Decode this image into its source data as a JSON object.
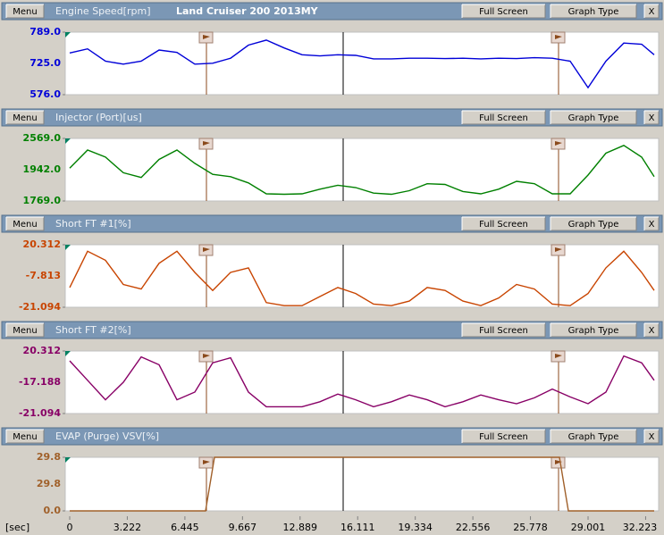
{
  "window": {
    "title": "Land Cruiser 200 2013MY"
  },
  "buttons": {
    "menu": "Menu",
    "full_screen": "Full Screen",
    "graph_type": "Graph Type",
    "close": "X"
  },
  "cursors": [
    {
      "x": 7.65,
      "color": "#8b4a1c"
    },
    {
      "x": 15.3,
      "color": "#000000"
    },
    {
      "x": 27.35,
      "color": "#8b4a1c"
    }
  ],
  "x_axis": {
    "label": "[sec]",
    "xlim": [
      -0.25,
      32.95
    ],
    "xticks": [
      0,
      3.222,
      6.445,
      9.667,
      12.889,
      16.111,
      19.334,
      22.556,
      25.778,
      29.001,
      32.223
    ]
  },
  "chart_data": [
    {
      "type": "line",
      "title": "Engine Speed[rpm]",
      "color": "#0000d8",
      "ylim": [
        576,
        789
      ],
      "yticks": [
        {
          "value": 576,
          "label": "576.0"
        },
        {
          "value": 789,
          "label": "789.0"
        }
      ],
      "cursor_value": "725.0",
      "x": [
        0,
        1,
        2,
        3,
        4,
        5,
        6,
        7,
        8,
        9,
        10,
        11,
        12,
        13,
        14,
        15,
        16,
        17,
        18,
        19,
        20,
        21,
        22,
        23,
        24,
        25,
        26,
        27,
        28,
        29,
        30,
        31,
        32,
        32.7
      ],
      "values": [
        718,
        732,
        690,
        680,
        690,
        728,
        720,
        680,
        683,
        700,
        745,
        762,
        735,
        712,
        708,
        712,
        710,
        698,
        698,
        700,
        700,
        699,
        700,
        698,
        700,
        699,
        702,
        700,
        690,
        600,
        690,
        752,
        748,
        712
      ]
    },
    {
      "type": "line",
      "title": "Injector (Port)[us]",
      "color": "#008000",
      "ylim": [
        1769,
        2569
      ],
      "yticks": [
        {
          "value": 1769,
          "label": "1769.0"
        },
        {
          "value": 2569,
          "label": "2569.0"
        }
      ],
      "cursor_value": "1942.0",
      "x": [
        0,
        1,
        2,
        3,
        4,
        5,
        6,
        7,
        8,
        9,
        10,
        11,
        12,
        13,
        14,
        15,
        16,
        17,
        18,
        19,
        20,
        21,
        22,
        23,
        24,
        25,
        26,
        27,
        28,
        29,
        30,
        31,
        32,
        32.7
      ],
      "values": [
        2190,
        2420,
        2330,
        2130,
        2070,
        2300,
        2420,
        2250,
        2110,
        2080,
        2000,
        1860,
        1855,
        1860,
        1920,
        1970,
        1940,
        1870,
        1855,
        1900,
        1990,
        1980,
        1890,
        1860,
        1920,
        2020,
        1990,
        1860,
        1860,
        2100,
        2380,
        2480,
        2330,
        2080
      ]
    },
    {
      "type": "line",
      "title": "Short FT #1[%]",
      "color": "#c84400",
      "ylim": [
        -21.094,
        20.312
      ],
      "yticks": [
        {
          "value": -21.094,
          "label": "-21.094"
        },
        {
          "value": 20.312,
          "label": "20.312"
        }
      ],
      "cursor_value": "-7.813",
      "x": [
        0,
        1,
        2,
        3,
        4,
        5,
        6,
        7,
        8,
        9,
        10,
        11,
        12,
        13,
        14,
        15,
        16,
        17,
        18,
        19,
        20,
        21,
        22,
        23,
        24,
        25,
        26,
        27,
        28,
        29,
        30,
        31,
        32,
        32.7
      ],
      "values": [
        -8,
        16,
        10,
        -6,
        -9,
        8,
        16,
        2,
        -10,
        2,
        5,
        -18,
        -20,
        -20,
        -14,
        -8,
        -12,
        -19,
        -20,
        -17,
        -8,
        -10,
        -17,
        -20,
        -15,
        -6,
        -9,
        -19,
        -20,
        -12,
        5,
        16,
        2,
        -10
      ]
    },
    {
      "type": "line",
      "title": "Short FT #2[%]",
      "color": "#880066",
      "ylim": [
        -21.094,
        20.312
      ],
      "yticks": [
        {
          "value": -21.094,
          "label": "-21.094"
        },
        {
          "value": 20.312,
          "label": "20.312"
        }
      ],
      "cursor_value": "-17.188",
      "x": [
        0,
        1,
        2,
        3,
        4,
        5,
        6,
        7,
        8,
        9,
        10,
        11,
        12,
        13,
        14,
        15,
        16,
        17,
        18,
        19,
        20,
        21,
        22,
        23,
        24,
        25,
        26,
        27,
        28,
        29,
        30,
        31,
        32,
        32.7
      ],
      "values": [
        13.8,
        0.9,
        -12,
        -0.4,
        16.4,
        11.2,
        -12,
        -6.9,
        12.5,
        15.8,
        -6.9,
        -16.6,
        -16.6,
        -16.6,
        -13.3,
        -8.2,
        -12,
        -16.6,
        -13.3,
        -8.8,
        -12,
        -16.6,
        -13.3,
        -8.8,
        -12,
        -14.6,
        -10.7,
        -4.9,
        -10.1,
        -14.6,
        -6.9,
        17,
        12.5,
        0.9
      ]
    },
    {
      "type": "line",
      "title": "EVAP (Purge) VSV[%]",
      "color": "#a0602a",
      "ylim": [
        0,
        29.8
      ],
      "yticks": [
        {
          "value": 0,
          "label": "0.0"
        },
        {
          "value": 29.8,
          "label": "29.8"
        }
      ],
      "cursor_value": "29.8",
      "x": [
        0,
        7.6,
        8.1,
        27.4,
        27.9,
        32.7
      ],
      "values": [
        0,
        0,
        29.8,
        29.8,
        0,
        0
      ]
    }
  ]
}
